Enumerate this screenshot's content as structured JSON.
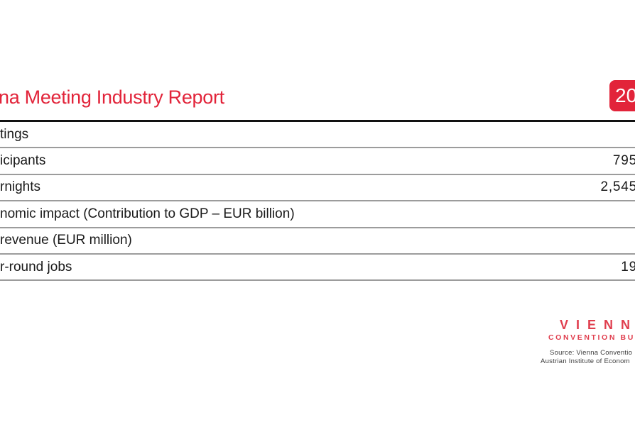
{
  "colors": {
    "accent": "#e2243a",
    "logo-red": "#e03e4e",
    "rule-gray": "#9c9c9c",
    "ink": "#191919",
    "muted": "#3c3c3c"
  },
  "header": {
    "title": "na Meeting Industry Report",
    "year_badge": "20"
  },
  "table": {
    "rows": [
      {
        "label": "tings",
        "value": ""
      },
      {
        "label": "icipants",
        "value": "795"
      },
      {
        "label": "rnights",
        "value": "2,545"
      },
      {
        "label": "nomic impact (Contribution to GDP – EUR billion)",
        "value": ""
      },
      {
        "label": "revenue (EUR million)",
        "value": ""
      },
      {
        "label": "r-round jobs",
        "value": "19"
      }
    ]
  },
  "footer": {
    "logo_line1": "VIENN",
    "logo_line2": "CONVENTION BU",
    "source_line1": "Source: Vienna Conventio",
    "source_line2": "Austrian Institute of Econom"
  }
}
